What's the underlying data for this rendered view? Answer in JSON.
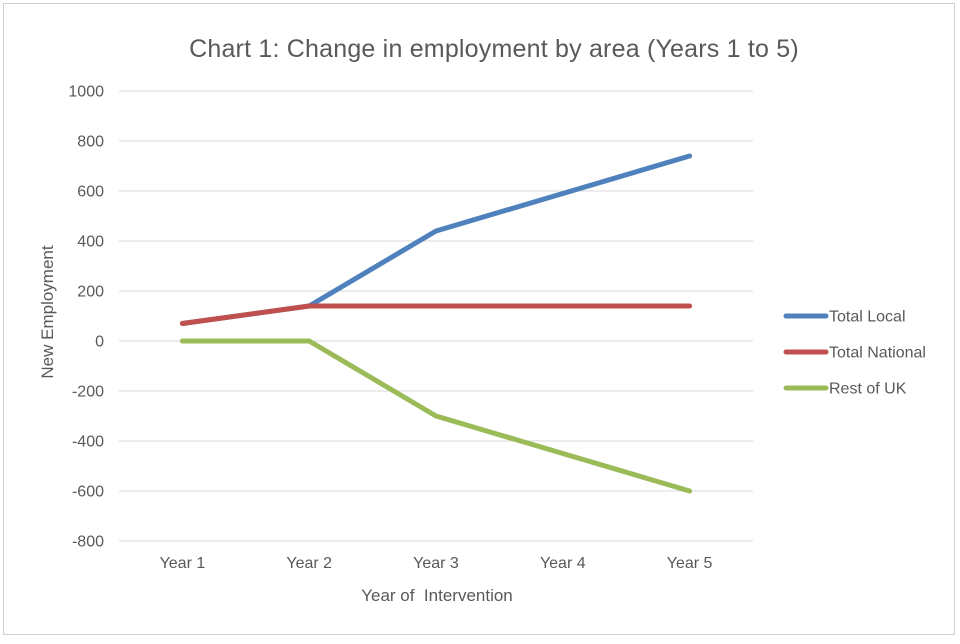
{
  "chart_data": {
    "type": "line",
    "title": "Chart 1: Change in employment by area (Years 1 to 5)",
    "xlabel": "Year of  Intervention",
    "ylabel": "New Employment",
    "categories": [
      "Year 1",
      "Year 2",
      "Year 3",
      "Year 4",
      "Year 5"
    ],
    "series": [
      {
        "name": "Total Local",
        "color": "#4F81BD",
        "values": [
          70,
          140,
          440,
          590,
          740
        ]
      },
      {
        "name": "Total National",
        "color": "#C0504D",
        "values": [
          70,
          140,
          140,
          140,
          140
        ]
      },
      {
        "name": "Rest of UK",
        "color": "#9BBB59",
        "values": [
          0,
          0,
          -300,
          -450,
          -600
        ]
      }
    ],
    "ylim": [
      -800,
      1000
    ],
    "ytick_step": 200,
    "grid": "horizontal",
    "legend_position": "right",
    "gridline_color": "#D9D9D9",
    "text_color": "#595959",
    "background_color": "#FFFFFF"
  }
}
